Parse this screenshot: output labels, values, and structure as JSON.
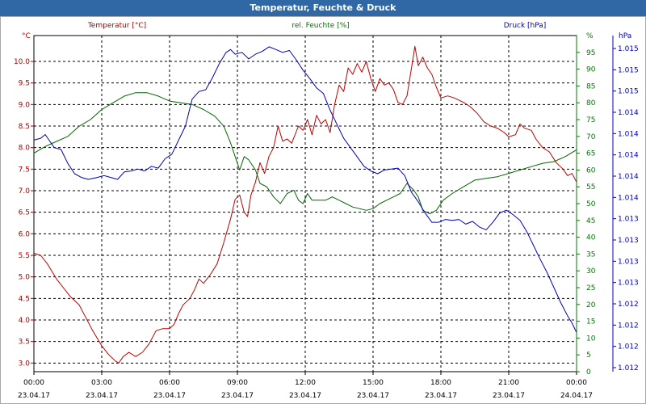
{
  "window": {
    "title": "Temperatur, Feuchte & Druck"
  },
  "chart_data": {
    "type": "line",
    "title": "Temperatur, Feuchte & Druck",
    "x_ticks": [
      {
        "time": "00:00",
        "date": "23.04.17"
      },
      {
        "time": "03:00",
        "date": "23.04.17"
      },
      {
        "time": "06:00",
        "date": "23.04.17"
      },
      {
        "time": "09:00",
        "date": "23.04.17"
      },
      {
        "time": "12:00",
        "date": "23.04.17"
      },
      {
        "time": "15:00",
        "date": "23.04.17"
      },
      {
        "time": "18:00",
        "date": "23.04.17"
      },
      {
        "time": "21:00",
        "date": "23.04.17"
      },
      {
        "time": "00:00",
        "date": "24.04.17"
      }
    ],
    "x_range_hours": [
      0,
      24
    ],
    "grid": true,
    "axes": {
      "temperature": {
        "unit": "°C",
        "range": [
          2.8,
          10.6
        ],
        "ticks": [
          "10.0",
          "9.5",
          "9.0",
          "8.5",
          "8.0",
          "7.5",
          "7.0",
          "6.5",
          "6.0",
          "5.5",
          "5.0",
          "4.5",
          "4.0",
          "3.5",
          "3.0"
        ],
        "color": "#aa0000"
      },
      "humidity": {
        "unit": "%",
        "range": [
          0,
          100
        ],
        "ticks": [
          "95",
          "90",
          "85",
          "80",
          "75",
          "70",
          "65",
          "60",
          "55",
          "50",
          "45",
          "40",
          "35",
          "30",
          "25",
          "20",
          "15",
          "10",
          "5",
          "0"
        ],
        "color": "#007700"
      },
      "pressure": {
        "unit": "hPa",
        "range": [
          1011.7,
          1015.3
        ],
        "ticks": [
          "1.015",
          "1.015",
          "1.015",
          "1.014",
          "1.014",
          "1.014",
          "1.014",
          "1.014",
          "1.013",
          "1.013",
          "1.013",
          "1.013",
          "1.012",
          "1.012",
          "1.012",
          "1.012"
        ],
        "color": "#0000bb"
      }
    },
    "series": [
      {
        "name": "Temperatur [°C]",
        "axis": "temperature",
        "color": "#bb0000",
        "points": [
          [
            0,
            5.55
          ],
          [
            0.3,
            5.5
          ],
          [
            0.6,
            5.3
          ],
          [
            1.0,
            4.95
          ],
          [
            1.3,
            4.75
          ],
          [
            1.6,
            4.55
          ],
          [
            2.0,
            4.35
          ],
          [
            2.3,
            4.05
          ],
          [
            2.6,
            3.75
          ],
          [
            3.0,
            3.4
          ],
          [
            3.3,
            3.2
          ],
          [
            3.6,
            3.05
          ],
          [
            3.75,
            3.0
          ],
          [
            3.95,
            3.15
          ],
          [
            4.2,
            3.25
          ],
          [
            4.5,
            3.15
          ],
          [
            4.8,
            3.25
          ],
          [
            5.1,
            3.45
          ],
          [
            5.4,
            3.75
          ],
          [
            5.7,
            3.8
          ],
          [
            6.0,
            3.8
          ],
          [
            6.2,
            3.9
          ],
          [
            6.4,
            4.15
          ],
          [
            6.6,
            4.35
          ],
          [
            6.9,
            4.5
          ],
          [
            7.1,
            4.7
          ],
          [
            7.3,
            4.95
          ],
          [
            7.5,
            4.85
          ],
          [
            7.8,
            5.05
          ],
          [
            8.1,
            5.3
          ],
          [
            8.4,
            5.8
          ],
          [
            8.7,
            6.35
          ],
          [
            8.9,
            6.8
          ],
          [
            9.1,
            6.9
          ],
          [
            9.3,
            6.5
          ],
          [
            9.45,
            6.4
          ],
          [
            9.6,
            6.9
          ],
          [
            9.8,
            7.2
          ],
          [
            10.0,
            7.65
          ],
          [
            10.2,
            7.4
          ],
          [
            10.4,
            7.8
          ],
          [
            10.6,
            8.0
          ],
          [
            10.8,
            8.5
          ],
          [
            11.0,
            8.15
          ],
          [
            11.2,
            8.2
          ],
          [
            11.4,
            8.1
          ],
          [
            11.7,
            8.5
          ],
          [
            11.9,
            8.4
          ],
          [
            12.1,
            8.65
          ],
          [
            12.3,
            8.3
          ],
          [
            12.5,
            8.75
          ],
          [
            12.7,
            8.55
          ],
          [
            12.9,
            8.65
          ],
          [
            13.1,
            8.35
          ],
          [
            13.3,
            9.0
          ],
          [
            13.5,
            9.45
          ],
          [
            13.7,
            9.3
          ],
          [
            13.9,
            9.85
          ],
          [
            14.1,
            9.7
          ],
          [
            14.3,
            9.95
          ],
          [
            14.5,
            9.75
          ],
          [
            14.7,
            10.0
          ],
          [
            14.9,
            9.6
          ],
          [
            15.1,
            9.3
          ],
          [
            15.3,
            9.6
          ],
          [
            15.5,
            9.45
          ],
          [
            15.7,
            9.5
          ],
          [
            15.9,
            9.35
          ],
          [
            16.1,
            9.05
          ],
          [
            16.3,
            9.0
          ],
          [
            16.5,
            9.2
          ],
          [
            16.7,
            9.85
          ],
          [
            16.85,
            10.35
          ],
          [
            17.0,
            9.9
          ],
          [
            17.2,
            10.1
          ],
          [
            17.4,
            9.85
          ],
          [
            17.6,
            9.7
          ],
          [
            17.8,
            9.4
          ],
          [
            18.0,
            9.15
          ],
          [
            18.3,
            9.2
          ],
          [
            18.6,
            9.15
          ],
          [
            19.0,
            9.05
          ],
          [
            19.3,
            8.95
          ],
          [
            19.6,
            8.8
          ],
          [
            19.9,
            8.6
          ],
          [
            20.2,
            8.5
          ],
          [
            20.5,
            8.45
          ],
          [
            20.8,
            8.35
          ],
          [
            21.0,
            8.25
          ],
          [
            21.3,
            8.3
          ],
          [
            21.5,
            8.55
          ],
          [
            21.7,
            8.45
          ],
          [
            22.0,
            8.4
          ],
          [
            22.2,
            8.2
          ],
          [
            22.5,
            8.0
          ],
          [
            22.8,
            7.9
          ],
          [
            23.1,
            7.65
          ],
          [
            23.4,
            7.5
          ],
          [
            23.6,
            7.35
          ],
          [
            23.8,
            7.4
          ],
          [
            24.0,
            7.2
          ]
        ]
      },
      {
        "name": "rel. Feuchte [%]",
        "axis": "humidity",
        "color": "#006600",
        "points": [
          [
            0,
            65
          ],
          [
            0.5,
            67
          ],
          [
            1.0,
            68.5
          ],
          [
            1.5,
            70
          ],
          [
            2.0,
            73
          ],
          [
            2.5,
            75
          ],
          [
            3.0,
            78
          ],
          [
            3.5,
            80
          ],
          [
            4.0,
            82
          ],
          [
            4.5,
            83
          ],
          [
            5.0,
            83
          ],
          [
            5.5,
            82
          ],
          [
            6.0,
            80.5
          ],
          [
            6.5,
            80
          ],
          [
            7.0,
            79.5
          ],
          [
            7.5,
            78
          ],
          [
            8.0,
            76
          ],
          [
            8.4,
            73
          ],
          [
            8.7,
            68
          ],
          [
            8.9,
            64
          ],
          [
            9.1,
            60
          ],
          [
            9.3,
            64
          ],
          [
            9.5,
            63
          ],
          [
            9.8,
            60
          ],
          [
            10.0,
            56
          ],
          [
            10.3,
            55
          ],
          [
            10.6,
            52
          ],
          [
            10.9,
            50
          ],
          [
            11.2,
            53
          ],
          [
            11.5,
            54
          ],
          [
            11.7,
            51
          ],
          [
            11.9,
            50
          ],
          [
            12.1,
            53
          ],
          [
            12.3,
            51
          ],
          [
            12.6,
            51
          ],
          [
            12.9,
            51
          ],
          [
            13.2,
            52
          ],
          [
            13.5,
            51
          ],
          [
            13.8,
            50
          ],
          [
            14.1,
            49
          ],
          [
            14.4,
            48.5
          ],
          [
            14.7,
            48
          ],
          [
            15.0,
            48.5
          ],
          [
            15.3,
            50
          ],
          [
            15.6,
            51
          ],
          [
            15.9,
            52
          ],
          [
            16.2,
            53
          ],
          [
            16.5,
            56
          ],
          [
            16.8,
            54
          ],
          [
            17.0,
            52
          ],
          [
            17.2,
            48
          ],
          [
            17.5,
            47
          ],
          [
            17.8,
            48
          ],
          [
            18.1,
            51
          ],
          [
            18.5,
            53
          ],
          [
            19.0,
            55
          ],
          [
            19.5,
            57
          ],
          [
            20.0,
            57.5
          ],
          [
            20.5,
            58
          ],
          [
            21.0,
            59
          ],
          [
            21.5,
            60
          ],
          [
            22.0,
            61
          ],
          [
            22.5,
            62
          ],
          [
            23.0,
            62.5
          ],
          [
            23.5,
            64
          ],
          [
            24.0,
            66
          ]
        ]
      },
      {
        "name": "Druck [hPa]",
        "axis": "pressure",
        "color": "#0000bb",
        "points": [
          [
            0,
            1014.18
          ],
          [
            0.3,
            1014.2
          ],
          [
            0.5,
            1014.24
          ],
          [
            0.7,
            1014.17
          ],
          [
            0.9,
            1014.1
          ],
          [
            1.2,
            1014.08
          ],
          [
            1.5,
            1013.93
          ],
          [
            1.8,
            1013.82
          ],
          [
            2.1,
            1013.78
          ],
          [
            2.4,
            1013.76
          ],
          [
            2.8,
            1013.78
          ],
          [
            3.1,
            1013.8
          ],
          [
            3.4,
            1013.78
          ],
          [
            3.7,
            1013.76
          ],
          [
            4.0,
            1013.84
          ],
          [
            4.3,
            1013.85
          ],
          [
            4.6,
            1013.87
          ],
          [
            4.9,
            1013.85
          ],
          [
            5.2,
            1013.9
          ],
          [
            5.5,
            1013.88
          ],
          [
            5.8,
            1013.98
          ],
          [
            6.1,
            1014.03
          ],
          [
            6.4,
            1014.18
          ],
          [
            6.7,
            1014.33
          ],
          [
            7.0,
            1014.62
          ],
          [
            7.3,
            1014.7
          ],
          [
            7.6,
            1014.72
          ],
          [
            7.9,
            1014.85
          ],
          [
            8.2,
            1015.0
          ],
          [
            8.5,
            1015.12
          ],
          [
            8.7,
            1015.15
          ],
          [
            8.9,
            1015.1
          ],
          [
            9.2,
            1015.12
          ],
          [
            9.5,
            1015.05
          ],
          [
            9.8,
            1015.1
          ],
          [
            10.1,
            1015.13
          ],
          [
            10.4,
            1015.18
          ],
          [
            10.7,
            1015.15
          ],
          [
            11.0,
            1015.12
          ],
          [
            11.3,
            1015.14
          ],
          [
            11.6,
            1015.04
          ],
          [
            11.9,
            1014.93
          ],
          [
            12.2,
            1014.84
          ],
          [
            12.5,
            1014.74
          ],
          [
            12.8,
            1014.68
          ],
          [
            13.1,
            1014.5
          ],
          [
            13.4,
            1014.35
          ],
          [
            13.7,
            1014.2
          ],
          [
            14.0,
            1014.1
          ],
          [
            14.3,
            1014.0
          ],
          [
            14.6,
            1013.9
          ],
          [
            14.9,
            1013.85
          ],
          [
            15.2,
            1013.82
          ],
          [
            15.5,
            1013.86
          ],
          [
            15.8,
            1013.87
          ],
          [
            16.1,
            1013.88
          ],
          [
            16.4,
            1013.8
          ],
          [
            16.7,
            1013.62
          ],
          [
            17.0,
            1013.52
          ],
          [
            17.3,
            1013.4
          ],
          [
            17.6,
            1013.3
          ],
          [
            17.9,
            1013.3
          ],
          [
            18.2,
            1013.33
          ],
          [
            18.5,
            1013.32
          ],
          [
            18.8,
            1013.33
          ],
          [
            19.1,
            1013.28
          ],
          [
            19.4,
            1013.31
          ],
          [
            19.7,
            1013.25
          ],
          [
            20.0,
            1013.22
          ],
          [
            20.3,
            1013.3
          ],
          [
            20.6,
            1013.4
          ],
          [
            20.9,
            1013.43
          ],
          [
            21.2,
            1013.38
          ],
          [
            21.5,
            1013.32
          ],
          [
            21.8,
            1013.2
          ],
          [
            22.1,
            1013.05
          ],
          [
            22.4,
            1012.9
          ],
          [
            22.7,
            1012.76
          ],
          [
            23.0,
            1012.6
          ],
          [
            23.3,
            1012.44
          ],
          [
            23.6,
            1012.3
          ],
          [
            23.8,
            1012.22
          ],
          [
            24.0,
            1012.12
          ]
        ]
      }
    ]
  }
}
